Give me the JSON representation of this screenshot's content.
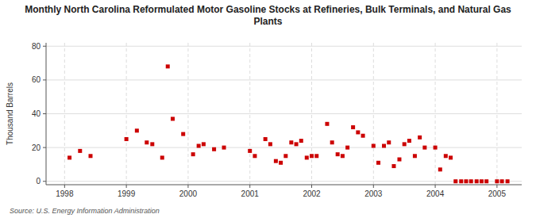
{
  "chart_data": {
    "type": "scatter",
    "title": "Monthly North Carolina Reformulated Motor Gasoline Stocks at Refineries, Bulk Terminals, and Natural Gas Plants",
    "ylabel": "Thousand Barrels",
    "annotations": [
      "Source: U.S. Energy Information Administration"
    ],
    "color": "#cc0000",
    "marker": "square",
    "grid": true,
    "xlim": [
      1997.7,
      2005.4
    ],
    "ylim": [
      -2,
      82
    ],
    "xticks": [
      1998,
      1999,
      2000,
      2001,
      2002,
      2003,
      2004,
      2005
    ],
    "yticks": [
      0,
      20,
      40,
      60,
      80
    ],
    "x": [
      1998.08,
      1998.25,
      1998.42,
      1999.0,
      1999.17,
      1999.33,
      1999.42,
      1999.58,
      1999.67,
      1999.75,
      1999.92,
      2000.08,
      2000.17,
      2000.25,
      2000.42,
      2000.58,
      2001.0,
      2001.08,
      2001.25,
      2001.33,
      2001.42,
      2001.5,
      2001.58,
      2001.67,
      2001.75,
      2001.83,
      2001.92,
      2002.0,
      2002.08,
      2002.25,
      2002.33,
      2002.42,
      2002.5,
      2002.58,
      2002.67,
      2002.75,
      2002.83,
      2003.0,
      2003.08,
      2003.17,
      2003.25,
      2003.33,
      2003.42,
      2003.5,
      2003.58,
      2003.67,
      2003.75,
      2003.83,
      2004.0,
      2004.08,
      2004.17,
      2004.25,
      2004.33,
      2004.42,
      2004.5,
      2004.58,
      2004.67,
      2004.75,
      2004.83,
      2005.0,
      2005.08,
      2005.17
    ],
    "values": [
      14,
      18,
      15,
      25,
      30,
      23,
      22,
      14,
      68,
      37,
      28,
      16,
      21,
      22,
      19,
      20,
      18,
      15,
      25,
      22,
      12,
      11,
      15,
      23,
      22,
      24,
      14,
      15,
      15,
      34,
      23,
      16,
      15,
      20,
      32,
      29,
      27,
      21,
      11,
      21,
      23,
      9,
      13,
      22,
      24,
      15,
      26,
      20,
      20,
      7,
      15,
      14,
      0,
      0,
      0,
      0,
      0,
      0,
      0,
      0,
      0,
      0
    ]
  }
}
